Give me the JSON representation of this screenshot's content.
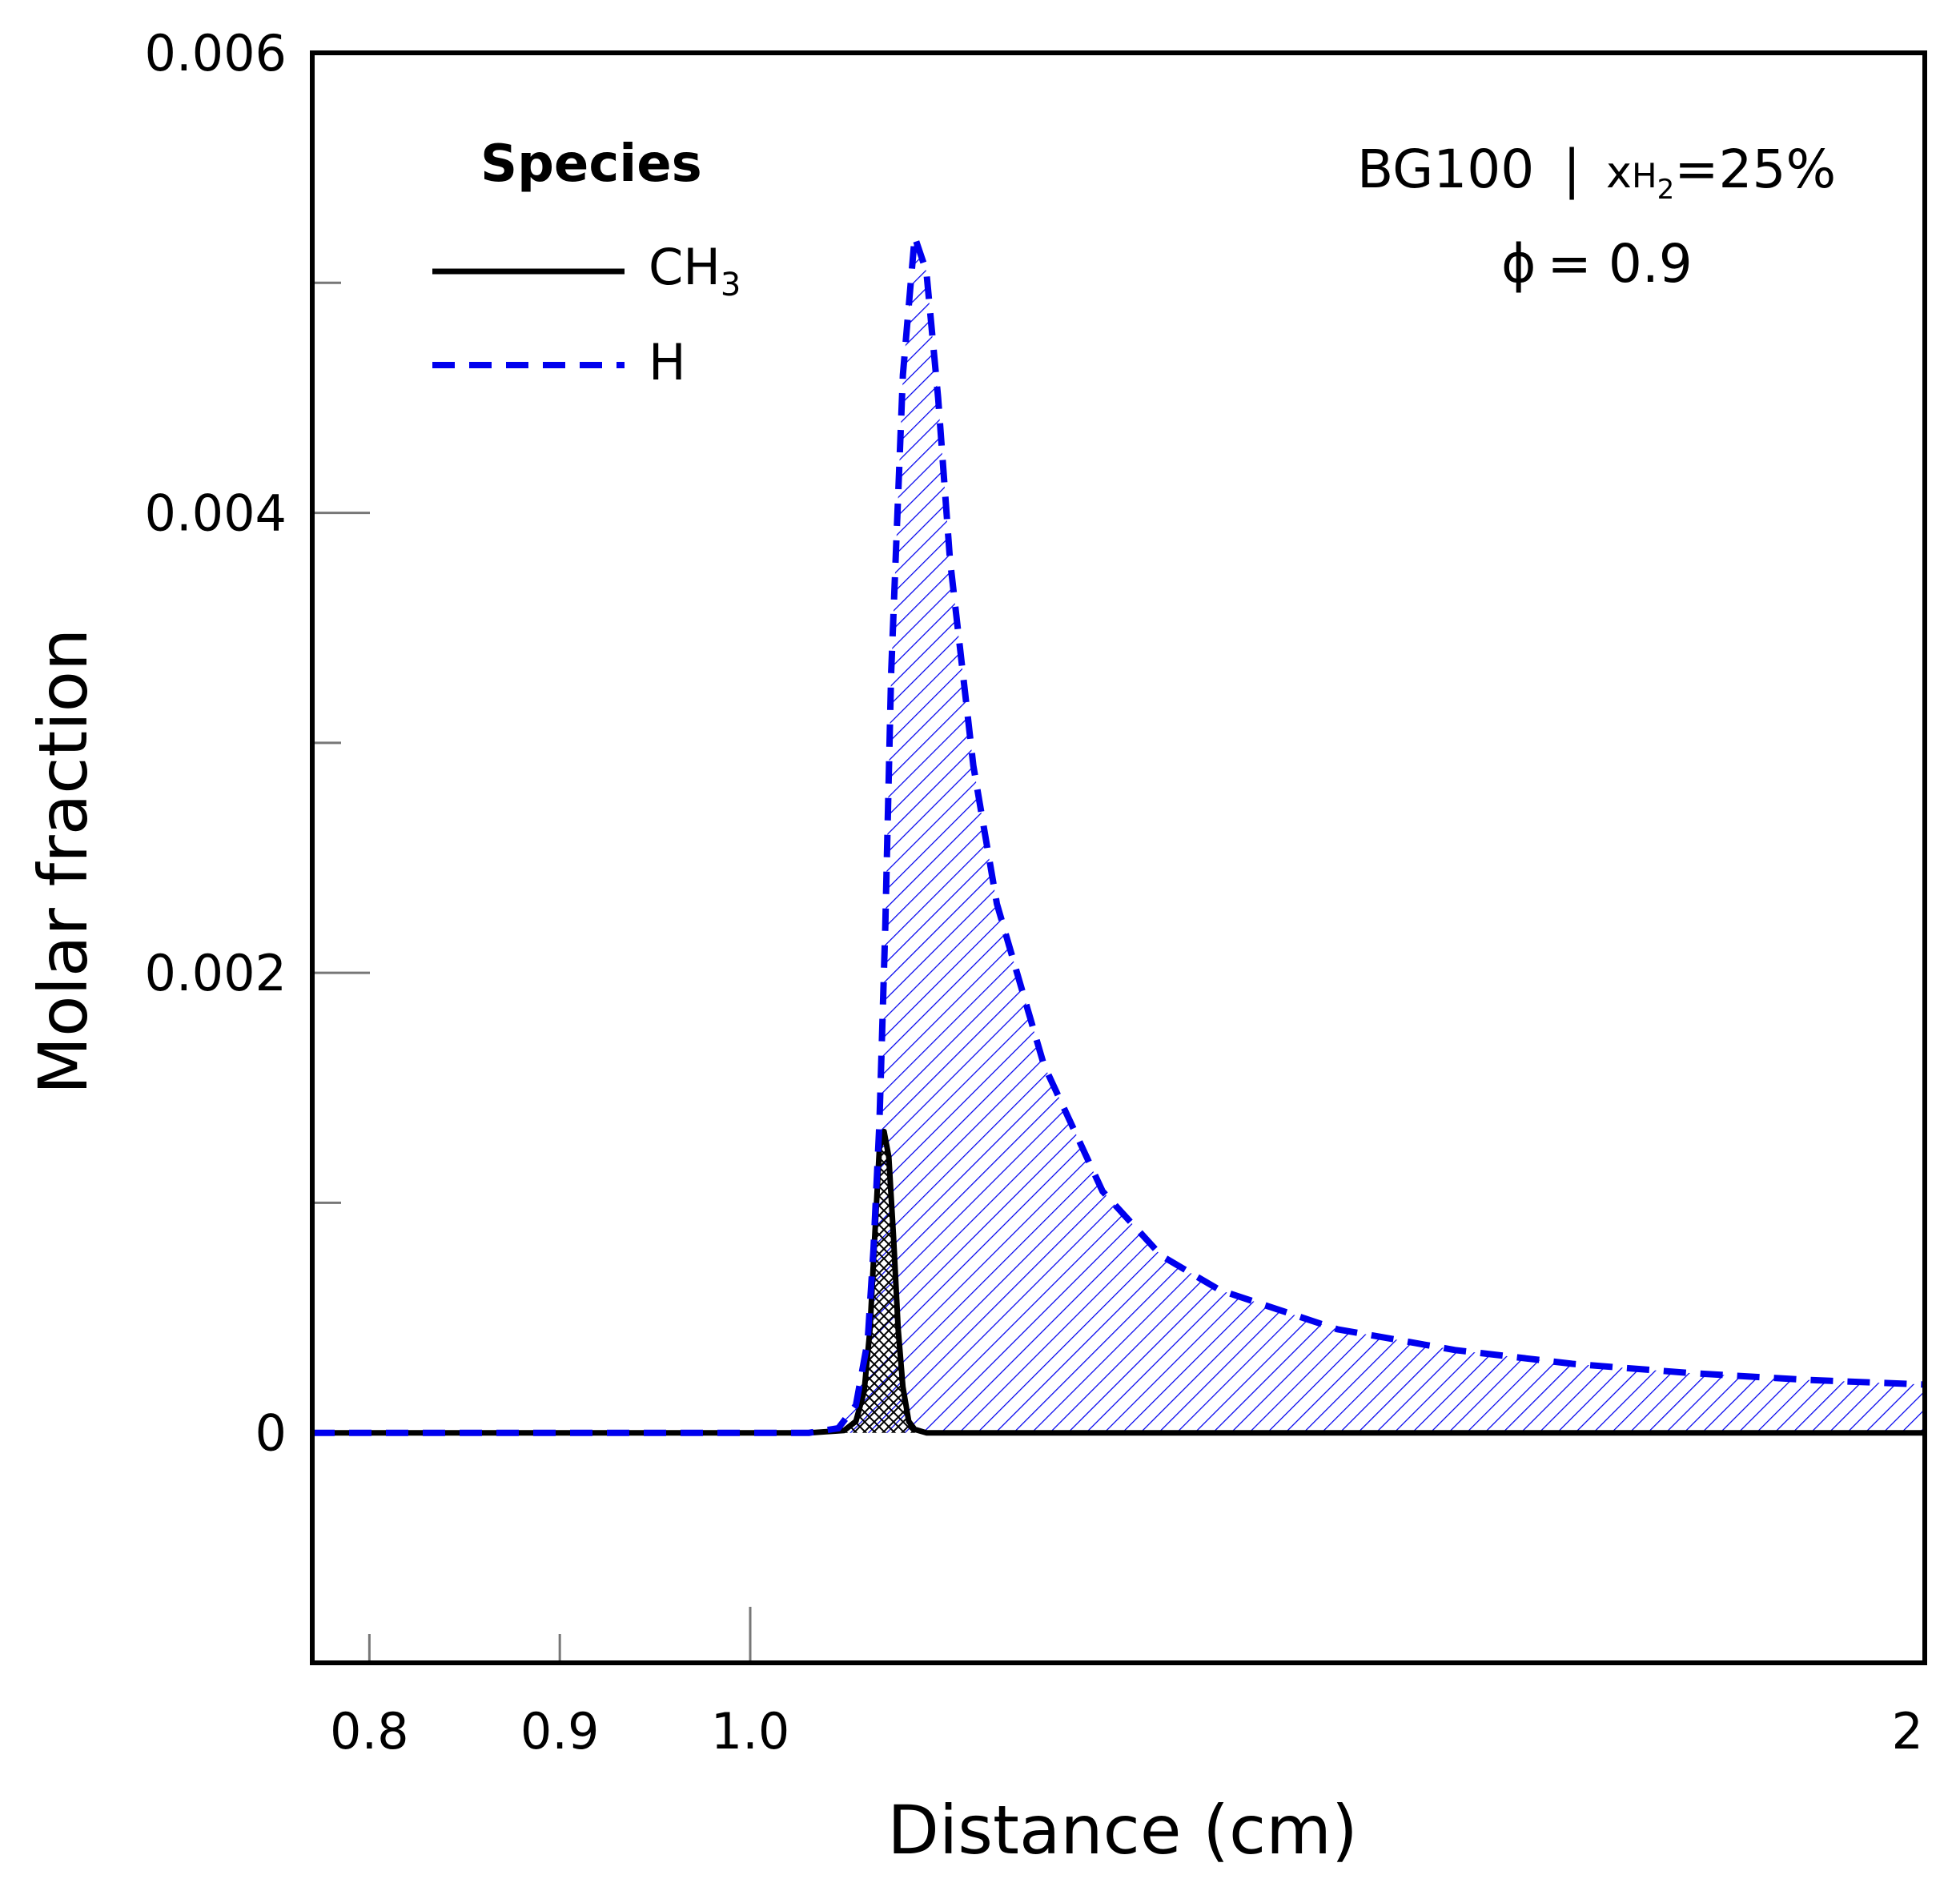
{
  "chart_data": {
    "type": "line",
    "title": "",
    "xlabel": "Distance (cm)",
    "ylabel": "Molar fraction",
    "x_axis": {
      "range": [
        0.77,
        2.0
      ],
      "ticks": [
        0.8,
        0.9,
        1.0,
        2.0
      ],
      "tick_labels": [
        "0.8",
        "0.9",
        "1.0",
        "2"
      ],
      "note": "broken scale: 0.77-1.0 expanded, 1.0-2.0 compressed"
    },
    "y_axis": {
      "range": [
        -0.001,
        0.006
      ],
      "major_ticks": [
        0,
        0.002,
        0.004,
        0.006
      ],
      "tick_labels": [
        "0",
        "0.002",
        "0.004",
        "0.006"
      ],
      "minor_ticks": [
        0.001,
        0.003,
        0.005
      ]
    },
    "legend": {
      "title": "Species",
      "position": "top-left"
    },
    "annotations": {
      "case_label": "BG100",
      "separator": "|",
      "composition_symbol": "x",
      "composition_species": "H",
      "composition_subscript": "2",
      "composition_value": "=25%",
      "equivalence_symbol": "ϕ",
      "equivalence_value": "= 0.9"
    },
    "series": [
      {
        "name": "CH3",
        "label_main": "CH",
        "label_sub": "3",
        "style": "solid",
        "color": "#000000",
        "fill": "crosshatch",
        "x": [
          0.77,
          1.0,
          1.05,
          1.08,
          1.09,
          1.097,
          1.102,
          1.106,
          1.11,
          1.114,
          1.118,
          1.122,
          1.126,
          1.13,
          1.135,
          1.14,
          1.15,
          1.2,
          1.5,
          2.0
        ],
        "y": [
          0,
          0,
          0,
          1e-05,
          5e-05,
          0.00018,
          0.00045,
          0.00085,
          0.00124,
          0.00131,
          0.0012,
          0.00085,
          0.00045,
          0.0002,
          5e-05,
          1.5e-05,
          0,
          0,
          0,
          0
        ]
      },
      {
        "name": "H",
        "label_main": "H",
        "label_sub": "",
        "style": "dashed",
        "color": "#0000ee",
        "fill": "diagonal-hatch",
        "x": [
          0.77,
          1.0,
          1.05,
          1.075,
          1.09,
          1.1,
          1.105,
          1.11,
          1.115,
          1.12,
          1.13,
          1.14,
          1.15,
          1.16,
          1.17,
          1.19,
          1.21,
          1.25,
          1.3,
          1.35,
          1.4,
          1.5,
          1.6,
          1.7,
          1.8,
          1.9,
          2.0
        ],
        "y": [
          0,
          0,
          0,
          2e-05,
          0.00012,
          0.0004,
          0.0008,
          0.00135,
          0.0022,
          0.0033,
          0.0046,
          0.0052,
          0.00505,
          0.0045,
          0.0038,
          0.0029,
          0.0023,
          0.0016,
          0.00105,
          0.00077,
          0.00062,
          0.00045,
          0.00036,
          0.0003,
          0.00026,
          0.00023,
          0.00021
        ]
      }
    ]
  }
}
